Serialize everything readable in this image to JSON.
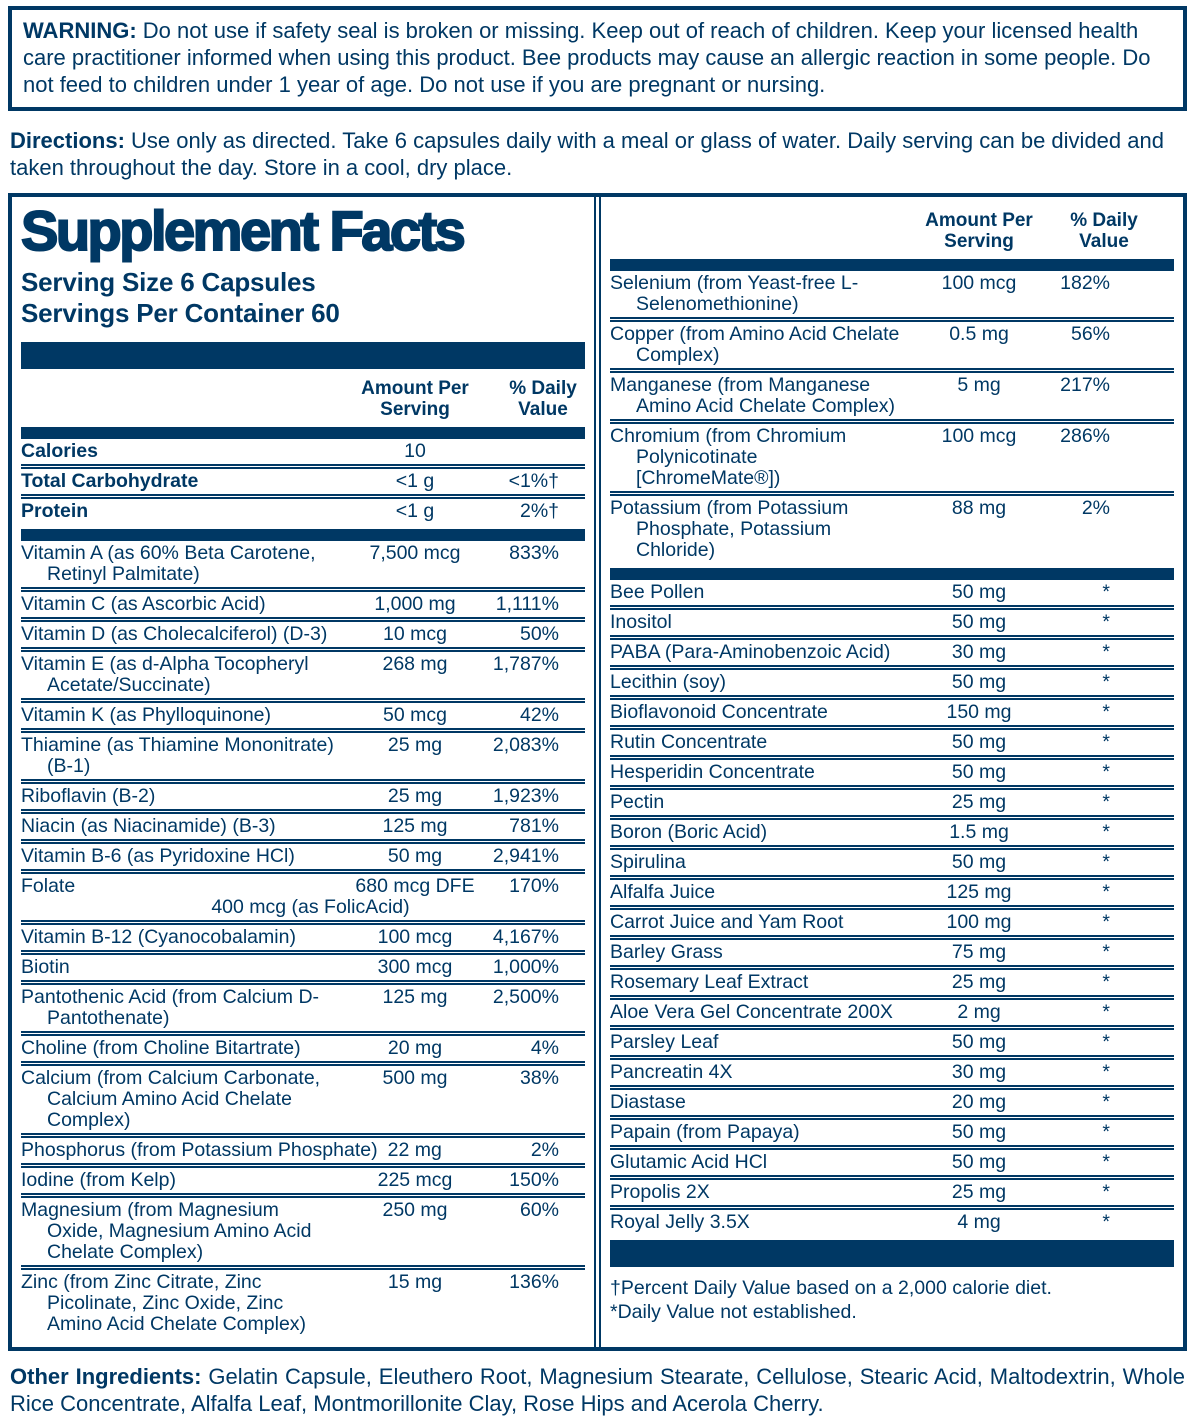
{
  "colors": {
    "navy": "#003864",
    "background": "#ffffff"
  },
  "warning": {
    "label": "WARNING:",
    "text": "Do not use if safety seal is broken or missing. Keep out of reach of children. Keep your licensed health care practitioner informed when using this product. Bee products may cause an allergic reaction in some people. Do not feed to children under 1 year of age. Do not use if you are pregnant or nursing."
  },
  "directions": {
    "label": "Directions:",
    "text": "Use only as directed. Take 6 capsules daily with a meal or glass of water. Daily serving can be divided and taken throughout the day. Store in a cool, dry place."
  },
  "supplement_facts": {
    "title": "Supplement Facts",
    "serving_size": "Serving Size 6 Capsules",
    "servings_per_container": "Servings Per Container 60",
    "col_headers": {
      "amount": "Amount Per Serving",
      "dv": "% Daily Value"
    },
    "sections": {
      "macros": [
        {
          "name": "Calories",
          "amount": "10",
          "dv": "",
          "bold": true
        },
        {
          "name": "Total Carbohydrate",
          "amount": "<1 g",
          "dv": "<1%†",
          "bold": true
        },
        {
          "name": "Protein",
          "amount": "<1 g",
          "dv": "2%†",
          "bold": true
        }
      ],
      "left_nutrients": [
        {
          "name": "Vitamin A (as 60% Beta Carotene, Retinyl Palmitate)",
          "amount": "7,500 mcg",
          "dv": "833%"
        },
        {
          "name": "Vitamin C (as Ascorbic Acid)",
          "amount": "1,000 mg",
          "dv": "1,111%"
        },
        {
          "name": "Vitamin D (as Cholecalciferol) (D-3)",
          "amount": "10 mcg",
          "dv": "50%"
        },
        {
          "name": "Vitamin E (as d-Alpha Tocopheryl Acetate/Succinate)",
          "amount": "268 mg",
          "dv": "1,787%"
        },
        {
          "name": "Vitamin K (as Phylloquinone)",
          "amount": "50 mcg",
          "dv": "42%"
        },
        {
          "name": "Thiamine (as Thiamine Mononitrate) (B-1)",
          "amount": "25 mg",
          "dv": "2,083%"
        },
        {
          "name": "Riboflavin (B-2)",
          "amount": "25 mg",
          "dv": "1,923%"
        },
        {
          "name": "Niacin (as Niacinamide) (B-3)",
          "amount": "125 mg",
          "dv": "781%"
        },
        {
          "name": "Vitamin B-6 (as Pyridoxine HCl)",
          "amount": "50 mg",
          "dv": "2,941%"
        },
        {
          "name": "Folate",
          "amount": "680 mcg DFE",
          "sub": "400 mcg (as FolicAcid)",
          "dv": "170%"
        },
        {
          "name": "Vitamin B-12 (Cyanocobalamin)",
          "amount": "100 mcg",
          "dv": "4,167%"
        },
        {
          "name": "Biotin",
          "amount": "300 mcg",
          "dv": "1,000%"
        },
        {
          "name": "Pantothenic Acid (from Calcium D-Pantothenate)",
          "amount": "125 mg",
          "dv": "2,500%"
        },
        {
          "name": "Choline (from Choline Bitartrate)",
          "amount": "20 mg",
          "dv": "4%"
        },
        {
          "name": "Calcium (from Calcium Carbonate, Calcium Amino Acid Chelate Complex)",
          "amount": "500 mg",
          "dv": "38%"
        },
        {
          "name": "Phosphorus (from Potassium Phosphate)",
          "amount": "22 mg",
          "dv": "2%",
          "inline": true
        },
        {
          "name": "Iodine (from Kelp)",
          "amount": "225 mcg",
          "dv": "150%"
        },
        {
          "name": "Magnesium (from Magnesium Oxide, Magnesium Amino Acid Chelate Complex)",
          "amount": "250 mg",
          "dv": "60%"
        },
        {
          "name": "Zinc (from Zinc Citrate, Zinc Picolinate, Zinc Oxide, Zinc Amino Acid Chelate Complex)",
          "amount": "15 mg",
          "dv": "136%"
        }
      ],
      "right_minerals": [
        {
          "name": "Selenium (from Yeast-free L-Selenomethionine)",
          "amount": "100 mcg",
          "dv": "182%"
        },
        {
          "name": "Copper (from Amino Acid Chelate Complex)",
          "amount": "0.5 mg",
          "dv": "56%"
        },
        {
          "name": "Manganese (from Manganese Amino Acid Chelate Complex)",
          "amount": "5 mg",
          "dv": "217%"
        },
        {
          "name": "Chromium (from Chromium Polynicotinate [ChromeMate®])",
          "amount": "100 mcg",
          "dv": "286%"
        },
        {
          "name": "Potassium (from Potassium Phosphate, Potassium Chloride)",
          "amount": "88 mg",
          "dv": "2%"
        }
      ],
      "right_botanicals": [
        {
          "name": "Bee Pollen",
          "amount": "50 mg",
          "dv": "*"
        },
        {
          "name": "Inositol",
          "amount": "50 mg",
          "dv": "*"
        },
        {
          "name": "PABA (Para-Aminobenzoic Acid)",
          "amount": "30 mg",
          "dv": "*"
        },
        {
          "name": "Lecithin (soy)",
          "amount": "50 mg",
          "dv": "*"
        },
        {
          "name": "Bioflavonoid Concentrate",
          "amount": "150 mg",
          "dv": "*"
        },
        {
          "name": "Rutin Concentrate",
          "amount": "50 mg",
          "dv": "*"
        },
        {
          "name": "Hesperidin Concentrate",
          "amount": "50 mg",
          "dv": "*"
        },
        {
          "name": "Pectin",
          "amount": "25 mg",
          "dv": "*"
        },
        {
          "name": "Boron (Boric Acid)",
          "amount": "1.5 mg",
          "dv": "*"
        },
        {
          "name": "Spirulina",
          "amount": "50 mg",
          "dv": "*"
        },
        {
          "name": "Alfalfa Juice",
          "amount": "125 mg",
          "dv": "*"
        },
        {
          "name": "Carrot Juice and Yam Root",
          "amount": "100 mg",
          "dv": "*"
        },
        {
          "name": "Barley Grass",
          "amount": "75 mg",
          "dv": "*"
        },
        {
          "name": "Rosemary Leaf Extract",
          "amount": "25 mg",
          "dv": "*"
        },
        {
          "name": "Aloe Vera Gel Concentrate 200X",
          "amount": "2 mg",
          "dv": "*"
        },
        {
          "name": "Parsley Leaf",
          "amount": "50 mg",
          "dv": "*"
        },
        {
          "name": "Pancreatin 4X",
          "amount": "30 mg",
          "dv": "*"
        },
        {
          "name": "Diastase",
          "amount": "20 mg",
          "dv": "*"
        },
        {
          "name": "Papain (from Papaya)",
          "amount": "50 mg",
          "dv": "*"
        },
        {
          "name": "Glutamic Acid HCl",
          "amount": "50 mg",
          "dv": "*"
        },
        {
          "name": "Propolis 2X",
          "amount": "25 mg",
          "dv": "*"
        },
        {
          "name": "Royal Jelly 3.5X",
          "amount": "4 mg",
          "dv": "*"
        }
      ]
    },
    "footnotes": [
      "†Percent Daily Value based on a 2,000 calorie diet.",
      "*Daily Value not established."
    ]
  },
  "other_ingredients": {
    "label": "Other Ingredients:",
    "text": "Gelatin Capsule, Eleuthero Root, Magnesium Stearate,  Cellulose, Stearic Acid, Maltodextrin, Whole Rice Concentrate, Alfalfa Leaf, Montmorillonite Clay, Rose Hips and Acerola Cherry."
  }
}
